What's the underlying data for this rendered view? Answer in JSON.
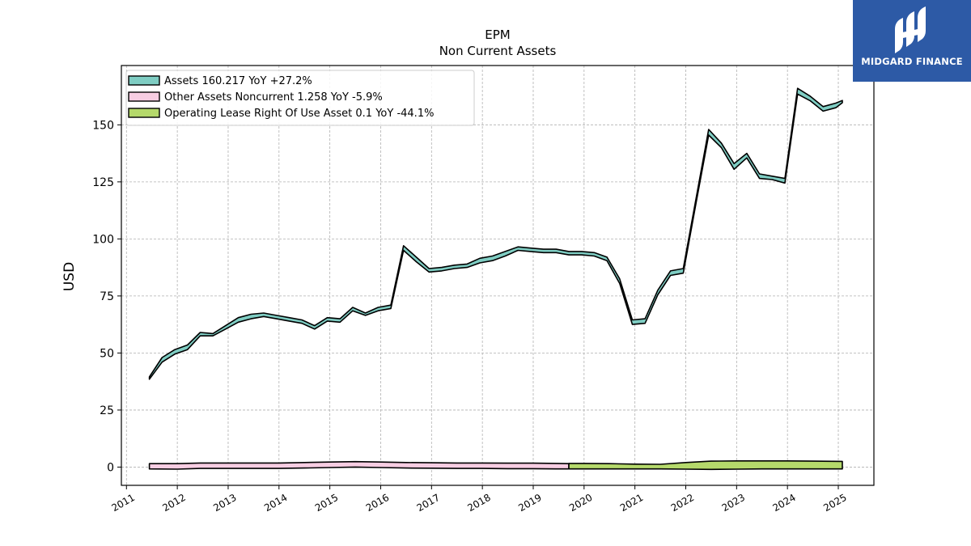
{
  "chart_data": {
    "type": "area",
    "title": "EPM\nNon Current  Assets",
    "title_lines": [
      "EPM",
      "Non Current  Assets"
    ],
    "xlabel": "",
    "ylabel": "USD",
    "xlim": [
      2010.9,
      2025.7
    ],
    "ylim": [
      -8,
      176
    ],
    "yticks": [
      0,
      25,
      50,
      75,
      100,
      125,
      150
    ],
    "xticks": [
      2011,
      2012,
      2013,
      2014,
      2015,
      2016,
      2017,
      2018,
      2019,
      2020,
      2021,
      2022,
      2023,
      2024,
      2025
    ],
    "grid": true,
    "legend_position": "upper-left",
    "series": [
      {
        "name": "Assets  160.217 YoY +27.2%",
        "color": "#7fcdc3",
        "style": "band",
        "x": [
          2011.45,
          2011.7,
          2011.95,
          2012.2,
          2012.45,
          2012.7,
          2012.95,
          2013.2,
          2013.45,
          2013.7,
          2013.95,
          2014.2,
          2014.45,
          2014.7,
          2014.95,
          2015.2,
          2015.45,
          2015.7,
          2015.95,
          2016.2,
          2016.45,
          2016.7,
          2016.95,
          2017.2,
          2017.45,
          2017.7,
          2017.95,
          2018.2,
          2018.45,
          2018.7,
          2018.95,
          2019.2,
          2019.45,
          2019.7,
          2019.95,
          2020.2,
          2020.45,
          2020.7,
          2020.95,
          2021.2,
          2021.45,
          2021.7,
          2021.95,
          2022.2,
          2022.45,
          2022.7,
          2022.95,
          2023.2,
          2023.45,
          2023.7,
          2023.95,
          2024.2,
          2024.45,
          2024.7,
          2024.95,
          2025.08
        ],
        "values": [
          39.5,
          48,
          51.5,
          53.5,
          59,
          58.5,
          62,
          65.5,
          67,
          67.5,
          66.5,
          65.5,
          64.5,
          62,
          65.5,
          65,
          70,
          67.5,
          70,
          71,
          97,
          92,
          87,
          87.5,
          88.5,
          89,
          91.5,
          92.5,
          94.5,
          96.5,
          96,
          95.5,
          95.5,
          94.5,
          94.5,
          94,
          92,
          82.5,
          64.5,
          65,
          77.5,
          86,
          87,
          117.5,
          148,
          142,
          133,
          137.5,
          128.5,
          127.5,
          126.5,
          166,
          162.5,
          158,
          159.5,
          160.7
        ],
        "lower": [
          38.5,
          46,
          49.5,
          51.5,
          57.5,
          57.5,
          60.5,
          63.5,
          65,
          66,
          65,
          64,
          63,
          60.5,
          64,
          63.5,
          68.5,
          66.5,
          68.5,
          69.5,
          95,
          90,
          85.5,
          86,
          87,
          87.5,
          89.5,
          90.5,
          92.5,
          95,
          94.5,
          94,
          94,
          93,
          93,
          92.5,
          90.5,
          80.5,
          62.5,
          63,
          75.5,
          84,
          85,
          115.5,
          145.5,
          140,
          130.5,
          135.5,
          126.5,
          126,
          124.5,
          163.5,
          160.5,
          156,
          157.5,
          159.7
        ]
      },
      {
        "name": "Other Assets Noncurrent  1.258 YoY -5.9%",
        "color": "#f7cde2",
        "style": "band",
        "x": [
          2011.45,
          2012.0,
          2012.45,
          2013.0,
          2013.5,
          2014.0,
          2014.5,
          2015.0,
          2015.5,
          2016.0,
          2016.5,
          2017.0,
          2017.5,
          2018.0,
          2018.5,
          2019.0,
          2019.45,
          2019.7
        ],
        "values": [
          1.5,
          1.5,
          1.8,
          1.8,
          1.8,
          1.8,
          2.0,
          2.2,
          2.4,
          2.2,
          2.0,
          1.9,
          1.8,
          1.8,
          1.7,
          1.7,
          1.6,
          1.5
        ],
        "lower": [
          -0.8,
          -0.9,
          -0.6,
          -0.6,
          -0.6,
          -0.6,
          -0.4,
          -0.2,
          0.0,
          -0.2,
          -0.4,
          -0.5,
          -0.6,
          -0.6,
          -0.7,
          -0.7,
          -0.8,
          -0.8
        ]
      },
      {
        "name": "Operating Lease Right Of Use Asset  0.1 YoY -44.1%",
        "color": "#b5d96b",
        "style": "band",
        "x": [
          2019.7,
          2020.0,
          2020.5,
          2021.0,
          2021.5,
          2022.0,
          2022.5,
          2023.0,
          2023.5,
          2024.0,
          2024.5,
          2025.08
        ],
        "values": [
          1.6,
          1.6,
          1.5,
          1.3,
          1.2,
          2.0,
          2.6,
          2.7,
          2.7,
          2.7,
          2.6,
          2.5
        ],
        "lower": [
          -0.8,
          -0.8,
          -0.8,
          -0.8,
          -0.8,
          -0.9,
          -1.0,
          -0.9,
          -0.8,
          -0.8,
          -0.8,
          -0.8
        ]
      }
    ]
  },
  "branding": {
    "logo_text": "MIDGARD FINANCE",
    "logo_bg": "#2d5aa6"
  }
}
